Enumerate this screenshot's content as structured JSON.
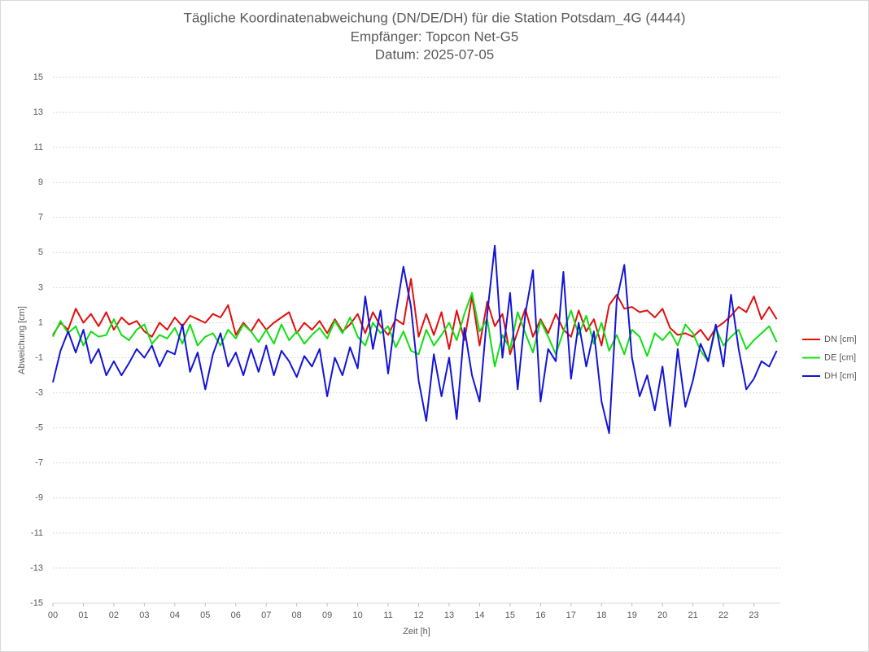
{
  "chart_data": {
    "type": "line",
    "title": "Tägliche Koordinatenabweichung (DN/DE/DH) für die Station Potsdam_4G (4444)",
    "subtitle": [
      "Empfänger: Topcon Net-G5",
      "Datum: 2025-07-05"
    ],
    "x_label": "Zeit [h]",
    "y_label": "Abweichung [cm]",
    "x": [
      0,
      0.25,
      0.5,
      0.75,
      1,
      1.25,
      1.5,
      1.75,
      2,
      2.25,
      2.5,
      2.75,
      3,
      3.25,
      3.5,
      3.75,
      4,
      4.25,
      4.5,
      4.75,
      5,
      5.25,
      5.5,
      5.75,
      6,
      6.25,
      6.5,
      6.75,
      7,
      7.25,
      7.5,
      7.75,
      8,
      8.25,
      8.5,
      8.75,
      9,
      9.25,
      9.5,
      9.75,
      10,
      10.25,
      10.5,
      10.75,
      11,
      11.25,
      11.5,
      11.75,
      12,
      12.25,
      12.5,
      12.75,
      13,
      13.25,
      13.5,
      13.75,
      14,
      14.25,
      14.5,
      14.75,
      15,
      15.25,
      15.5,
      15.75,
      16,
      16.25,
      16.5,
      16.75,
      17,
      17.25,
      17.5,
      17.75,
      18,
      18.25,
      18.5,
      18.75,
      19,
      19.25,
      19.5,
      19.75,
      20,
      20.25,
      20.5,
      20.75,
      21,
      21.25,
      21.5,
      21.75,
      22,
      22.25,
      22.5,
      22.75,
      23,
      23.25,
      23.5,
      23.75
    ],
    "series": [
      {
        "name": "DN [cm]",
        "color": "#e01010",
        "values": [
          0.3,
          1.0,
          0.6,
          1.8,
          1.0,
          1.5,
          0.8,
          1.6,
          0.6,
          1.3,
          0.9,
          1.1,
          0.5,
          0.2,
          1.0,
          0.6,
          1.3,
          0.8,
          1.4,
          1.2,
          1.0,
          1.5,
          1.3,
          2.0,
          0.3,
          1.0,
          0.5,
          1.2,
          0.6,
          1.0,
          1.3,
          1.6,
          0.4,
          1.0,
          0.6,
          1.1,
          0.4,
          1.2,
          0.5,
          0.9,
          1.5,
          0.4,
          1.6,
          0.8,
          0.3,
          1.2,
          0.9,
          3.5,
          0.2,
          1.5,
          0.3,
          1.6,
          -0.5,
          1.7,
          0.0,
          2.5,
          -0.3,
          2.2,
          0.8,
          1.5,
          -0.8,
          0.5,
          1.8,
          0.2,
          1.2,
          0.4,
          1.5,
          0.6,
          0.2,
          1.7,
          0.5,
          1.2,
          -0.3,
          2.0,
          2.6,
          1.8,
          1.9,
          1.6,
          1.7,
          1.3,
          1.8,
          0.7,
          0.3,
          0.4,
          0.2,
          0.6,
          0.0,
          0.7,
          1.0,
          1.4,
          1.9,
          1.6,
          2.5,
          1.2,
          1.9,
          1.2
        ]
      },
      {
        "name": "DE [cm]",
        "color": "#10e010",
        "values": [
          0.2,
          1.1,
          0.4,
          0.8,
          -0.3,
          0.5,
          0.2,
          0.3,
          1.2,
          0.3,
          0.0,
          0.6,
          0.9,
          -0.2,
          0.3,
          0.1,
          0.7,
          -0.2,
          0.9,
          -0.3,
          0.2,
          0.4,
          -0.3,
          0.6,
          0.1,
          0.9,
          0.5,
          -0.1,
          0.6,
          -0.2,
          0.9,
          0.0,
          0.5,
          -0.2,
          0.3,
          0.7,
          0.1,
          1.1,
          0.4,
          1.3,
          0.2,
          -0.3,
          1.0,
          0.4,
          0.8,
          -0.4,
          0.5,
          -0.6,
          -0.8,
          0.6,
          -0.3,
          0.3,
          1.0,
          0.0,
          1.5,
          2.7,
          0.5,
          1.2,
          -1.5,
          0.3,
          -0.5,
          1.6,
          0.4,
          -0.7,
          1.1,
          0.2,
          -0.8,
          0.5,
          1.7,
          0.3,
          1.4,
          -0.2,
          1.0,
          -0.6,
          0.3,
          -0.8,
          0.6,
          0.2,
          -0.9,
          0.4,
          0.0,
          0.5,
          -0.3,
          0.9,
          0.4,
          -0.6,
          -1.2,
          0.7,
          -0.3,
          0.2,
          0.6,
          -0.5,
          0.0,
          0.4,
          0.8,
          -0.1
        ]
      },
      {
        "name": "DH [cm]",
        "color": "#1414d8",
        "values": [
          -2.4,
          -0.6,
          0.5,
          -0.7,
          0.6,
          -1.3,
          -0.5,
          -2.0,
          -1.2,
          -2.0,
          -1.3,
          -0.5,
          -1.0,
          -0.3,
          -1.5,
          -0.6,
          -0.8,
          0.9,
          -1.8,
          -0.7,
          -2.8,
          -0.8,
          0.4,
          -1.5,
          -0.7,
          -2.0,
          -0.5,
          -1.8,
          -0.3,
          -2.0,
          -0.6,
          -1.2,
          -2.1,
          -0.9,
          -1.5,
          -0.5,
          -3.2,
          -1.0,
          -2.0,
          -0.4,
          -1.6,
          2.5,
          -0.5,
          1.7,
          -1.9,
          1.5,
          4.2,
          1.9,
          -2.3,
          -4.6,
          -0.8,
          -3.2,
          -1.0,
          -4.5,
          0.7,
          -2.0,
          -3.5,
          1.5,
          5.4,
          -1.0,
          2.7,
          -2.8,
          1.5,
          4.0,
          -3.5,
          -0.5,
          -1.2,
          3.9,
          -2.2,
          1.0,
          -1.5,
          0.5,
          -3.5,
          -5.3,
          2.3,
          4.3,
          -1.0,
          -3.2,
          -2.0,
          -4.0,
          -1.5,
          -4.9,
          -0.5,
          -3.8,
          -2.3,
          -0.2,
          -1.2,
          0.9,
          -1.5,
          2.6,
          -0.5,
          -2.8,
          -2.2,
          -1.2,
          -1.5,
          -0.6
        ]
      }
    ],
    "xlim": [
      0,
      24
    ],
    "xticks": [
      {
        "value": 0,
        "label": "00"
      },
      {
        "value": 1,
        "label": "01"
      },
      {
        "value": 2,
        "label": "02"
      },
      {
        "value": 3,
        "label": "03"
      },
      {
        "value": 4,
        "label": "04"
      },
      {
        "value": 5,
        "label": "05"
      },
      {
        "value": 6,
        "label": "06"
      },
      {
        "value": 7,
        "label": "07"
      },
      {
        "value": 8,
        "label": "08"
      },
      {
        "value": 9,
        "label": "09"
      },
      10,
      11,
      12,
      13,
      14,
      15,
      16,
      17,
      18,
      19,
      20,
      21,
      22,
      23
    ],
    "ylim": [
      -15,
      15
    ],
    "yticks": [
      -15,
      -13,
      -11,
      -9,
      -7,
      -5,
      -3,
      -1,
      1,
      3,
      5,
      7,
      9,
      11,
      13,
      15
    ],
    "grid": true,
    "legend": "right"
  }
}
